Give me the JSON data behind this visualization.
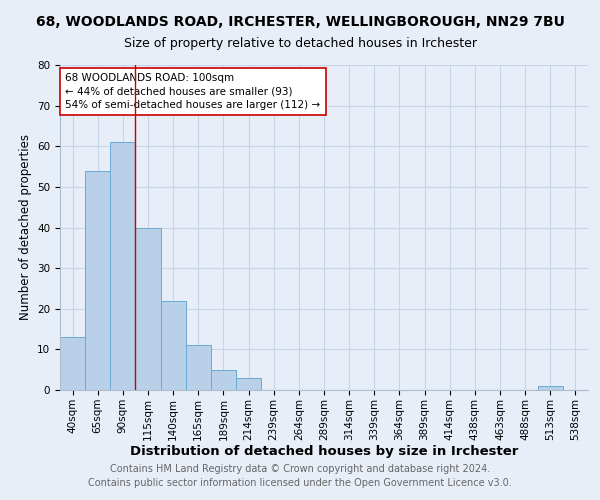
{
  "title": "68, WOODLANDS ROAD, IRCHESTER, WELLINGBOROUGH, NN29 7BU",
  "subtitle": "Size of property relative to detached houses in Irchester",
  "xlabel": "Distribution of detached houses by size in Irchester",
  "ylabel": "Number of detached properties",
  "footnote1": "Contains HM Land Registry data © Crown copyright and database right 2024.",
  "footnote2": "Contains public sector information licensed under the Open Government Licence v3.0.",
  "bar_labels": [
    "40sqm",
    "65sqm",
    "90sqm",
    "115sqm",
    "140sqm",
    "165sqm",
    "189sqm",
    "214sqm",
    "239sqm",
    "264sqm",
    "289sqm",
    "314sqm",
    "339sqm",
    "364sqm",
    "389sqm",
    "414sqm",
    "438sqm",
    "463sqm",
    "488sqm",
    "513sqm",
    "538sqm"
  ],
  "bar_values": [
    13,
    54,
    61,
    40,
    22,
    11,
    5,
    3,
    0,
    0,
    0,
    0,
    0,
    0,
    0,
    0,
    0,
    0,
    0,
    1,
    0
  ],
  "bar_color": "#b8d0e8",
  "bar_edge_color": "#6aaad4",
  "grid_color": "#c8d4e8",
  "background_color": "#e8eef8",
  "vline_x": 2.5,
  "vline_color": "#cc0000",
  "annotation_text": "68 WOODLANDS ROAD: 100sqm\n← 44% of detached houses are smaller (93)\n54% of semi-detached houses are larger (112) →",
  "annotation_box_color": "#ffffff",
  "annotation_box_edge": "#cc0000",
  "ylim": [
    0,
    80
  ],
  "yticks": [
    0,
    10,
    20,
    30,
    40,
    50,
    60,
    70,
    80
  ],
  "title_fontsize": 10,
  "subtitle_fontsize": 9,
  "xlabel_fontsize": 9.5,
  "ylabel_fontsize": 8.5,
  "tick_fontsize": 7.5,
  "footnote_fontsize": 7
}
